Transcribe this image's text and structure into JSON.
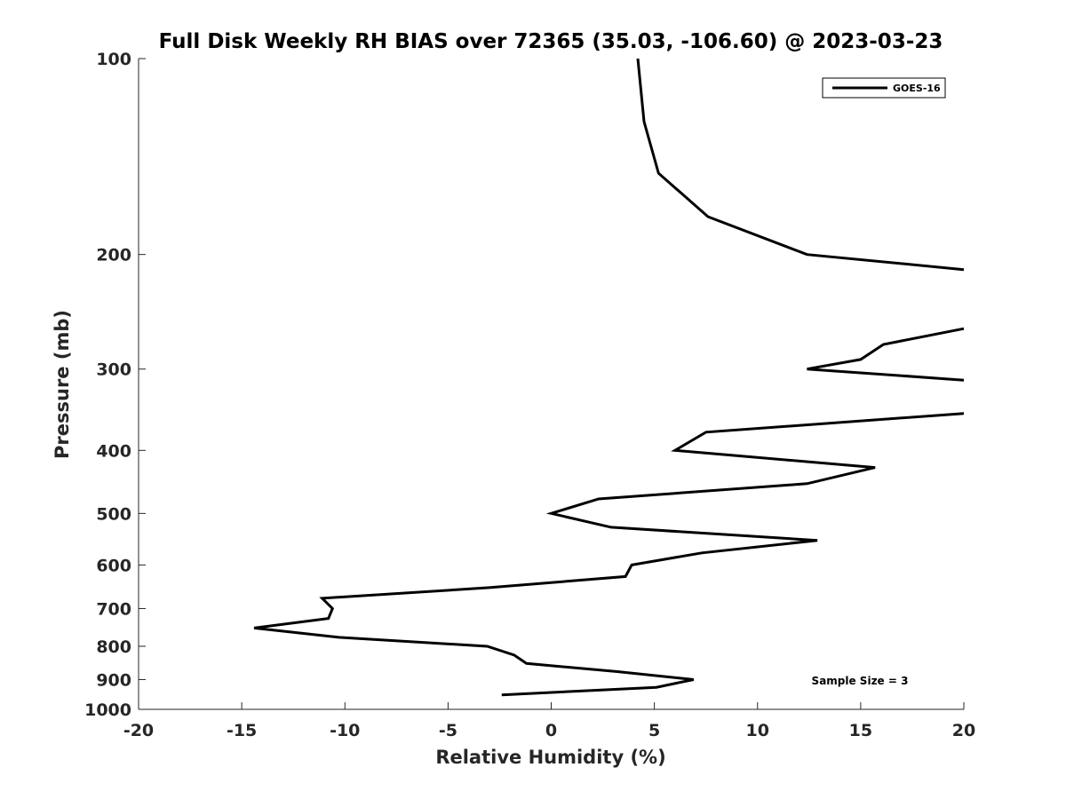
{
  "chart_data": {
    "type": "line",
    "title": "Full Disk Weekly RH BIAS over 72365 (35.03, -106.60) @ 2023-03-23",
    "xlabel": "Relative Humidity (%)",
    "ylabel": "Pressure (mb)",
    "xlim": [
      -20,
      20
    ],
    "ylim": [
      100,
      1000
    ],
    "y_scale": "log",
    "y_reversed": true,
    "x_ticks": [
      "-20",
      "-15",
      "-10",
      "-5",
      "0",
      "5",
      "10",
      "15",
      "20"
    ],
    "y_ticks": [
      "100",
      "200",
      "300",
      "400",
      "500",
      "600",
      "700",
      "800",
      "900",
      "1000"
    ],
    "grid": false,
    "legend_position": "top-right",
    "annotation": "Sample Size = 3",
    "series": [
      {
        "name": "GOES-16",
        "color": "#000000",
        "segments": [
          [
            [
              4.2,
              100
            ],
            [
              4.5,
              125
            ],
            [
              5.2,
              150
            ],
            [
              7.6,
              175
            ],
            [
              12.4,
              200
            ],
            [
              20,
              211
            ]
          ],
          [
            [
              20,
              260
            ],
            [
              16.1,
              275
            ],
            [
              15,
              290
            ],
            [
              12.4,
              300
            ],
            [
              20,
              312
            ]
          ],
          [
            [
              20,
              351
            ],
            [
              7.5,
              375
            ],
            [
              6.0,
              400
            ],
            [
              15.7,
              425
            ],
            [
              12.4,
              450
            ],
            [
              2.3,
              475
            ],
            [
              0.0,
              500
            ],
            [
              2.9,
              525
            ],
            [
              12.9,
              550
            ],
            [
              7.3,
              575
            ],
            [
              3.9,
              600
            ],
            [
              3.6,
              625
            ],
            [
              -3.0,
              650
            ],
            [
              -11.1,
              675
            ],
            [
              -10.6,
              700
            ],
            [
              -10.8,
              725
            ],
            [
              -14.4,
              750
            ],
            [
              -10.3,
              775
            ],
            [
              -3.1,
              800
            ],
            [
              -1.8,
              825
            ],
            [
              -1.2,
              850
            ],
            [
              3.2,
              875
            ],
            [
              6.9,
              900
            ],
            [
              5.1,
              925
            ],
            [
              -2.4,
              950
            ]
          ]
        ]
      }
    ]
  }
}
